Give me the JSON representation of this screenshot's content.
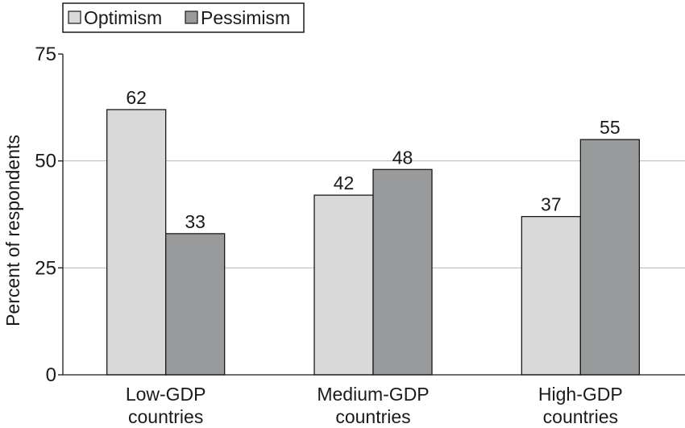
{
  "chart_data": {
    "type": "bar",
    "categories": [
      [
        "Low-GDP",
        "countries"
      ],
      [
        "Medium-GDP",
        "countries"
      ],
      [
        "High-GDP",
        "countries"
      ]
    ],
    "series": [
      {
        "name": "Optimism",
        "values": [
          62,
          42,
          37
        ],
        "color": "#d9d9d9"
      },
      {
        "name": "Pessimism",
        "values": [
          33,
          48,
          55
        ],
        "color": "#999a9c"
      }
    ],
    "ylabel": "Percent of respondents",
    "xlabel": "",
    "ylim": [
      0,
      75
    ],
    "yticks": [
      0,
      25,
      50,
      75
    ],
    "grid": true,
    "legend_position": "top-left",
    "data_labels": true
  }
}
